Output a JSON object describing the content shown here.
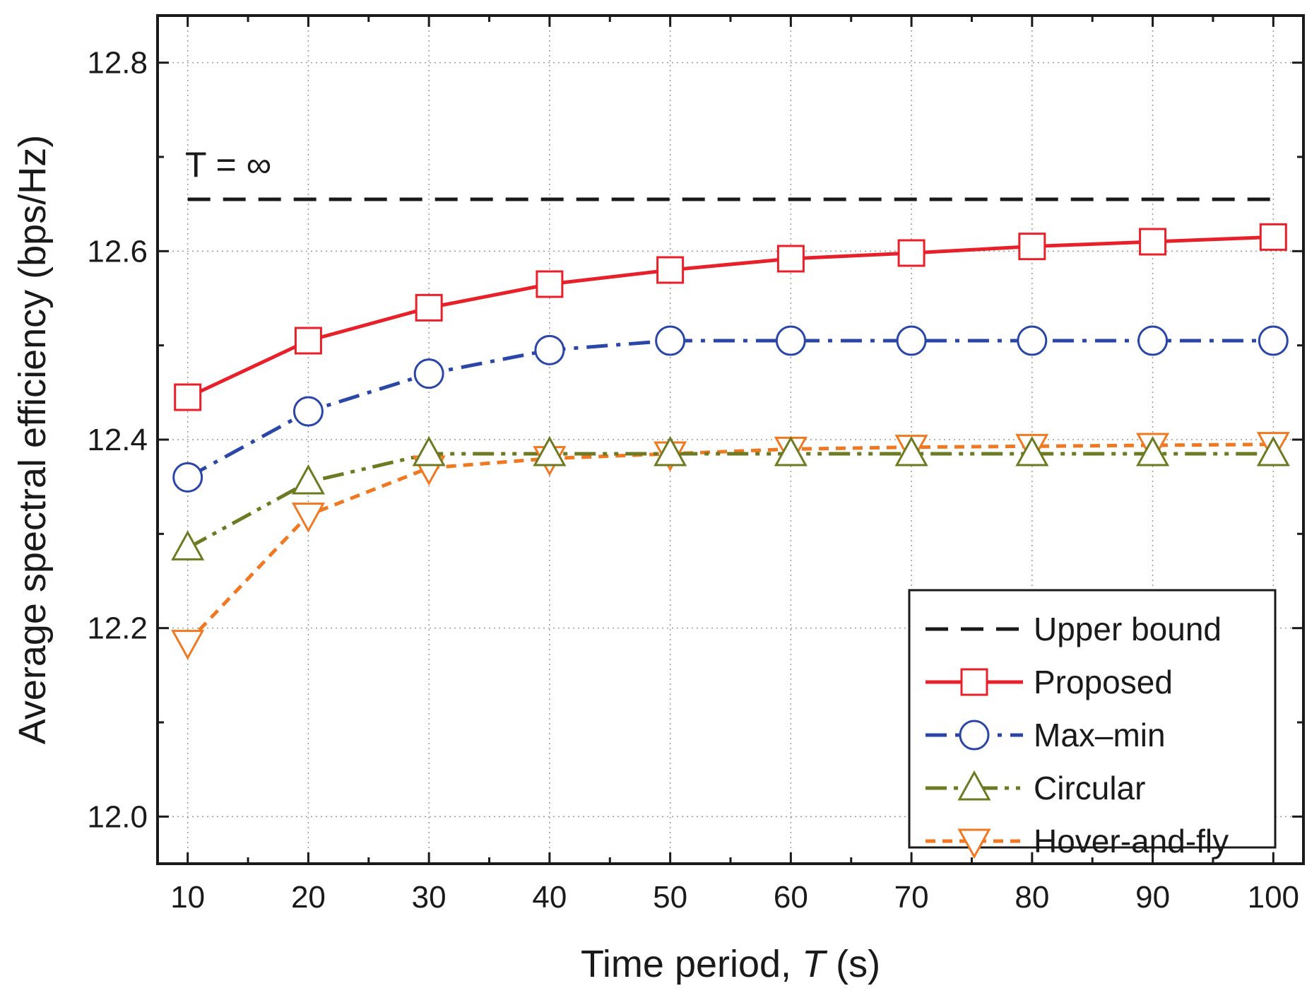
{
  "chart_data": {
    "type": "line",
    "title": "",
    "xlabel": "Time period, ",
    "xlabel_var": "T",
    "xlabel_unit": " (s)",
    "ylabel": "Average spectral efficiency (bps/Hz)",
    "xlim": [
      7.5,
      102.5
    ],
    "ylim": [
      11.95,
      12.85
    ],
    "xticks": [
      10,
      20,
      30,
      40,
      50,
      60,
      70,
      80,
      90,
      100
    ],
    "yticks": [
      12.0,
      12.2,
      12.4,
      12.6,
      12.8
    ],
    "grid": true,
    "legend_position": "bottom-right",
    "annotation": "T = ∞",
    "x": [
      10,
      20,
      30,
      40,
      50,
      60,
      70,
      80,
      90,
      100
    ],
    "series": [
      {
        "name": "Upper bound",
        "color": "#1a1a1a",
        "marker": "none",
        "dash": "dashed",
        "values": [
          12.655,
          12.655,
          12.655,
          12.655,
          12.655,
          12.655,
          12.655,
          12.655,
          12.655,
          12.655
        ]
      },
      {
        "name": "Proposed",
        "color": "#e8202a",
        "marker": "square",
        "dash": "solid",
        "values": [
          12.445,
          12.505,
          12.54,
          12.565,
          12.58,
          12.592,
          12.598,
          12.605,
          12.61,
          12.615
        ]
      },
      {
        "name": "Max–min",
        "color": "#2a47a8",
        "marker": "circle",
        "dash": "dashdot",
        "values": [
          12.36,
          12.43,
          12.47,
          12.495,
          12.505,
          12.505,
          12.505,
          12.505,
          12.505,
          12.505
        ]
      },
      {
        "name": "Circular",
        "color": "#6e7a22",
        "marker": "triangle-up",
        "dash": "dashdotdot",
        "values": [
          12.285,
          12.355,
          12.385,
          12.385,
          12.385,
          12.385,
          12.385,
          12.385,
          12.385,
          12.385
        ]
      },
      {
        "name": "Hover-and-fly",
        "color": "#f07820",
        "marker": "triangle-down",
        "dash": "short-dash",
        "values": [
          12.185,
          12.32,
          12.37,
          12.38,
          12.385,
          12.39,
          12.392,
          12.393,
          12.394,
          12.395
        ]
      }
    ]
  }
}
